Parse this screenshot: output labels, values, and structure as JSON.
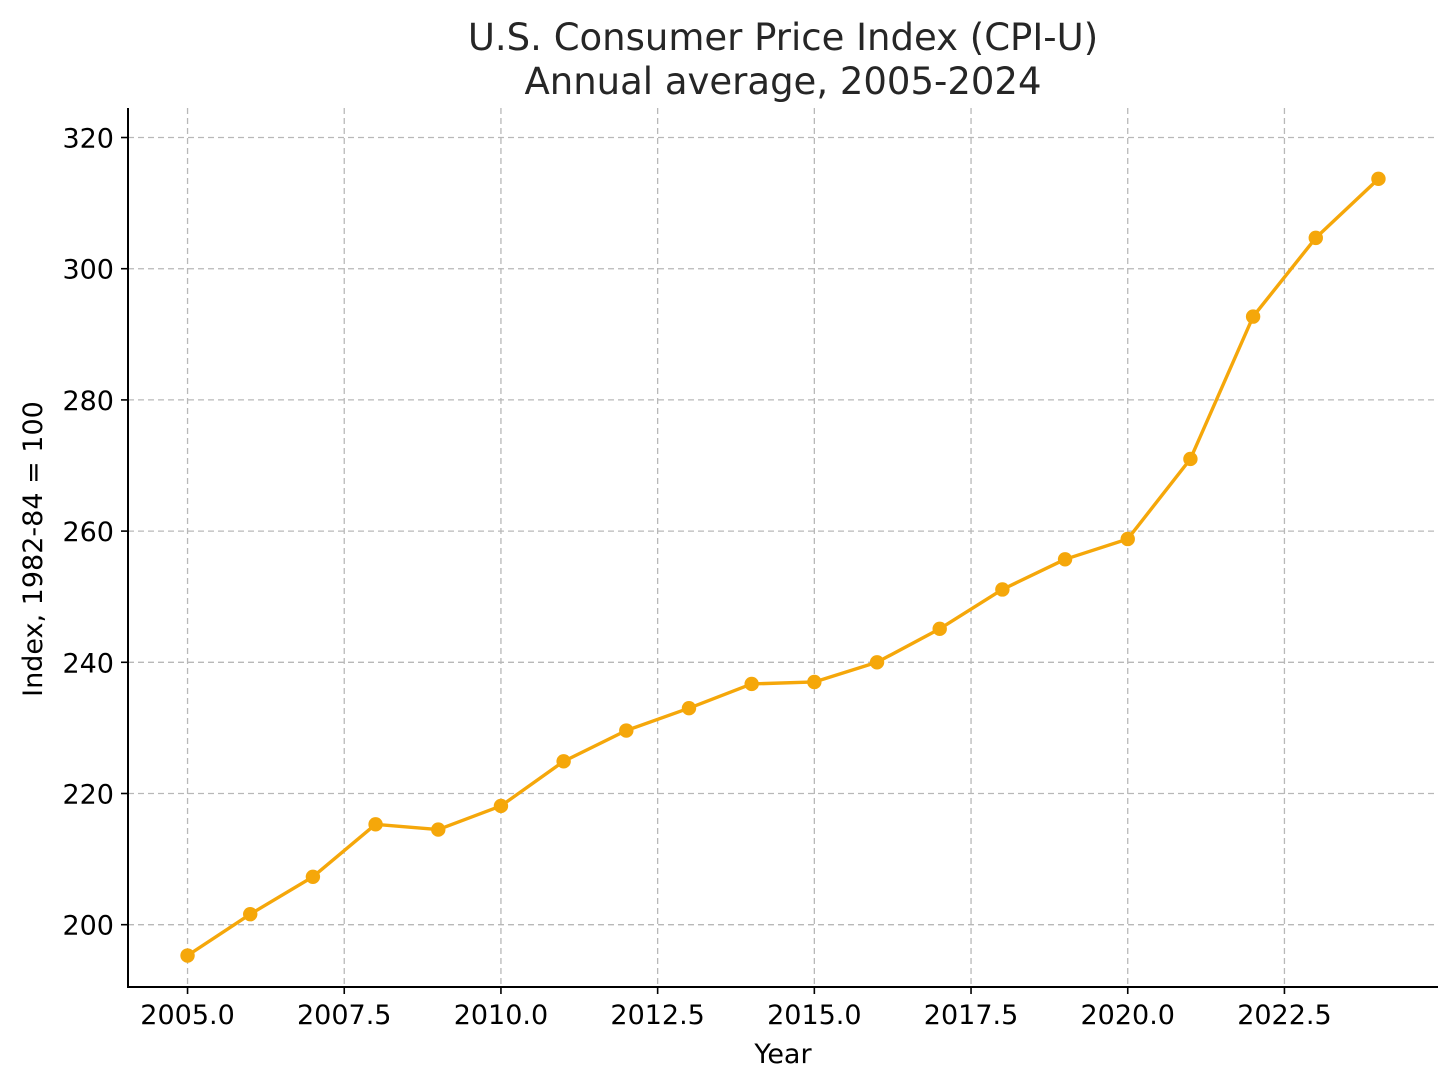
{
  "chart_data": {
    "type": "line",
    "title": "U.S. Consumer Price Index (CPI-U)",
    "subtitle": "Annual average, 2005-2024",
    "xlabel": "Year",
    "ylabel": "Index, 1982-84 = 100",
    "xlim": [
      2004.05,
      2024.95
    ],
    "ylim": [
      190.5,
      324.5
    ],
    "xticks": [
      2005.0,
      2007.5,
      2010.0,
      2012.5,
      2015.0,
      2017.5,
      2020.0,
      2022.5
    ],
    "xtick_labels": [
      "2005.0",
      "2007.5",
      "2010.0",
      "2012.5",
      "2015.0",
      "2017.5",
      "2020.0",
      "2022.5"
    ],
    "yticks": [
      200,
      220,
      240,
      260,
      280,
      300,
      320
    ],
    "ytick_labels": [
      "200",
      "220",
      "240",
      "260",
      "280",
      "300",
      "320"
    ],
    "grid": true,
    "line_color": "#F5A70A",
    "series": [
      {
        "x": [
          2005,
          2006,
          2007,
          2008,
          2009,
          2010,
          2011,
          2012,
          2013,
          2014,
          2015,
          2016,
          2017,
          2018,
          2019,
          2020,
          2021,
          2022,
          2023,
          2024
        ],
        "values": [
          195.3,
          201.6,
          207.3,
          215.3,
          214.5,
          218.1,
          224.9,
          229.6,
          233.0,
          236.7,
          237.0,
          240.0,
          245.1,
          251.1,
          255.7,
          258.8,
          271.0,
          292.7,
          304.7,
          313.7
        ]
      }
    ]
  }
}
